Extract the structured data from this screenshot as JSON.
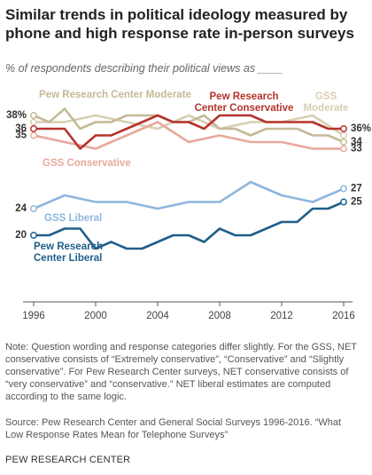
{
  "chart_data": {
    "type": "line",
    "title": "Similar trends in political ideology measured by phone and high response rate in-person surveys",
    "subtitle": "% of respondents describing their political views as ____",
    "xlim": [
      1996,
      2016
    ],
    "xticks": [
      1996,
      2000,
      2004,
      2008,
      2012,
      2016
    ],
    "ylim": [
      10,
      40
    ],
    "series": [
      {
        "name": "Pew Research Center Moderate",
        "color": "#c5b996",
        "x": [
          1996,
          1997,
          1998,
          1999,
          2000,
          2001,
          2002,
          2003,
          2004,
          2005,
          2006,
          2007,
          2008,
          2009,
          2010,
          2011,
          2012,
          2013,
          2014,
          2015,
          2016
        ],
        "values": [
          38,
          37,
          39,
          36,
          37,
          37,
          38,
          38,
          38,
          37,
          37,
          38,
          36,
          36,
          35,
          36,
          36,
          36,
          35,
          35,
          34
        ],
        "value_labels": [
          "38%",
          null,
          null,
          null,
          null,
          null,
          null,
          null,
          null,
          null,
          null,
          null,
          null,
          null,
          null,
          null,
          null,
          null,
          null,
          null,
          "34"
        ]
      },
      {
        "name": "Pew Research Center Conservative",
        "color": "#b5332b",
        "x": [
          1996,
          1997,
          1998,
          1999,
          2000,
          2001,
          2002,
          2003,
          2004,
          2005,
          2006,
          2007,
          2008,
          2009,
          2010,
          2011,
          2012,
          2013,
          2014,
          2015,
          2016
        ],
        "values": [
          36,
          36,
          36,
          33,
          35,
          35,
          36,
          37,
          38,
          37,
          37,
          36,
          38,
          38,
          38,
          37,
          37,
          37,
          37,
          36,
          36
        ],
        "value_labels": [
          "36",
          null,
          null,
          null,
          null,
          null,
          null,
          null,
          null,
          null,
          null,
          null,
          null,
          null,
          null,
          null,
          null,
          null,
          null,
          null,
          "36%"
        ]
      },
      {
        "name": "GSS Moderate",
        "color": "#d8cfb2",
        "x": [
          1996,
          1998,
          2000,
          2002,
          2004,
          2006,
          2008,
          2010,
          2012,
          2014,
          2016
        ],
        "values": [
          37,
          37,
          38,
          37,
          36,
          38,
          36,
          37,
          37,
          38,
          35
        ],
        "value_labels": [
          null,
          null,
          null,
          null,
          null,
          null,
          null,
          null,
          null,
          null,
          null
        ]
      },
      {
        "name": "GSS Conservative",
        "color": "#e8a89c",
        "x": [
          1996,
          1998,
          2000,
          2002,
          2004,
          2006,
          2008,
          2010,
          2012,
          2014,
          2016
        ],
        "values": [
          35,
          34,
          33,
          35,
          37,
          34,
          35,
          34,
          34,
          33,
          33
        ],
        "value_labels": [
          "35",
          null,
          null,
          null,
          null,
          null,
          null,
          null,
          null,
          null,
          "33"
        ]
      },
      {
        "name": "GSS Liberal",
        "color": "#8db6de",
        "x": [
          1996,
          1998,
          2000,
          2002,
          2004,
          2006,
          2008,
          2010,
          2012,
          2014,
          2016
        ],
        "values": [
          24,
          26,
          25,
          25,
          24,
          25,
          25,
          28,
          26,
          25,
          27
        ],
        "value_labels": [
          "24",
          null,
          null,
          null,
          null,
          null,
          null,
          null,
          null,
          null,
          "27"
        ]
      },
      {
        "name": "Pew Research Center Liberal",
        "color": "#1f5e8a",
        "x": [
          1996,
          1997,
          1998,
          1999,
          2000,
          2001,
          2002,
          2003,
          2004,
          2005,
          2006,
          2007,
          2008,
          2009,
          2010,
          2011,
          2012,
          2013,
          2014,
          2015,
          2016
        ],
        "values": [
          20,
          20,
          21,
          21,
          18,
          19,
          18,
          18,
          19,
          20,
          20,
          19,
          21,
          20,
          20,
          21,
          22,
          22,
          24,
          24,
          25
        ],
        "value_labels": [
          "20",
          null,
          null,
          null,
          null,
          null,
          null,
          null,
          null,
          null,
          null,
          null,
          null,
          null,
          null,
          null,
          null,
          null,
          null,
          null,
          "25"
        ]
      }
    ],
    "note": "Note: Question wording and response categories differ slightly. For the GSS, NET conservative consists of “Extremely conservative”, “Conservative” and “Slightly conservative”. For Pew Research Center surveys, NET conservative consists of “very conservative” and “conservative.” NET liberal estimates are computed according to the same logic.",
    "source": "Source: Pew Research Center and General Social Surveys 1996-2016. “What Low Response Rates Mean for Telephone Surveys”",
    "credit": "PEW RESEARCH CENTER"
  }
}
